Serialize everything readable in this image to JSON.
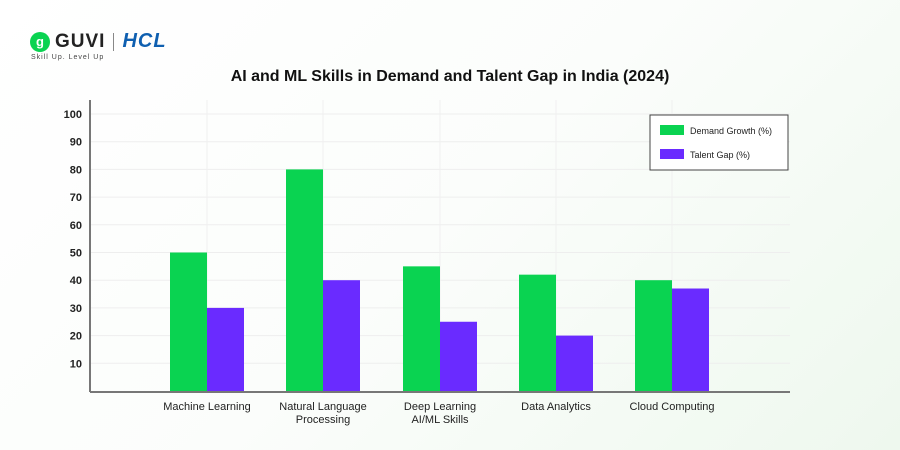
{
  "brand": {
    "guvi": "GUVI",
    "hcl": "HCL",
    "tagline": "Skill Up. Level Up"
  },
  "chart_data": {
    "type": "bar",
    "title": "AI and ML Skills in Demand and Talent Gap in India (2024)",
    "categories": [
      [
        "Machine Learning"
      ],
      [
        "Natural Language",
        "Processing"
      ],
      [
        "Deep Learning",
        "AI/ML Skills"
      ],
      [
        "Data Analytics"
      ],
      [
        "Cloud Computing"
      ]
    ],
    "series": [
      {
        "name": "Demand Growth (%)",
        "color": "#0ad351",
        "values": [
          50,
          80,
          45,
          42,
          40
        ]
      },
      {
        "name": "Talent Gap (%)",
        "color": "#6a2bff",
        "values": [
          30,
          40,
          25,
          20,
          37
        ]
      }
    ],
    "yticks": [
      10,
      20,
      30,
      40,
      50,
      60,
      70,
      80,
      90,
      100
    ],
    "ylim": [
      0,
      100
    ],
    "xlabel": "",
    "ylabel": "",
    "grid": true,
    "legend": "top-right"
  }
}
